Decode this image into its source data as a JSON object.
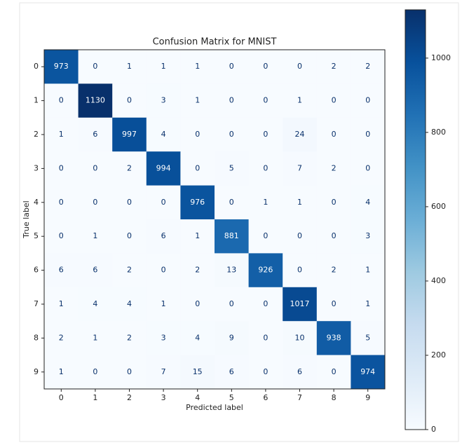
{
  "chart_data": {
    "type": "heatmap",
    "title": "Confusion Matrix for MNIST",
    "xlabel": "Predicted label",
    "ylabel": "True label",
    "x": [
      "0",
      "1",
      "2",
      "3",
      "4",
      "5",
      "6",
      "7",
      "8",
      "9"
    ],
    "y": [
      "0",
      "1",
      "2",
      "3",
      "4",
      "5",
      "6",
      "7",
      "8",
      "9"
    ],
    "values": [
      [
        973,
        0,
        1,
        1,
        1,
        0,
        0,
        0,
        2,
        2
      ],
      [
        0,
        1130,
        0,
        3,
        1,
        0,
        0,
        1,
        0,
        0
      ],
      [
        1,
        6,
        997,
        4,
        0,
        0,
        0,
        24,
        0,
        0
      ],
      [
        0,
        0,
        2,
        994,
        0,
        5,
        0,
        7,
        2,
        0
      ],
      [
        0,
        0,
        0,
        0,
        976,
        0,
        1,
        1,
        0,
        4
      ],
      [
        0,
        1,
        0,
        6,
        1,
        881,
        0,
        0,
        0,
        3
      ],
      [
        6,
        6,
        2,
        0,
        2,
        13,
        926,
        0,
        2,
        1
      ],
      [
        1,
        4,
        4,
        1,
        0,
        0,
        0,
        1017,
        0,
        1
      ],
      [
        2,
        1,
        2,
        3,
        4,
        9,
        0,
        10,
        938,
        5
      ],
      [
        1,
        0,
        0,
        7,
        15,
        6,
        0,
        6,
        0,
        974
      ]
    ],
    "colormap": "Blues",
    "clim": [
      0,
      1130
    ],
    "cticks": [
      0,
      200,
      400,
      600,
      800,
      1000
    ]
  }
}
